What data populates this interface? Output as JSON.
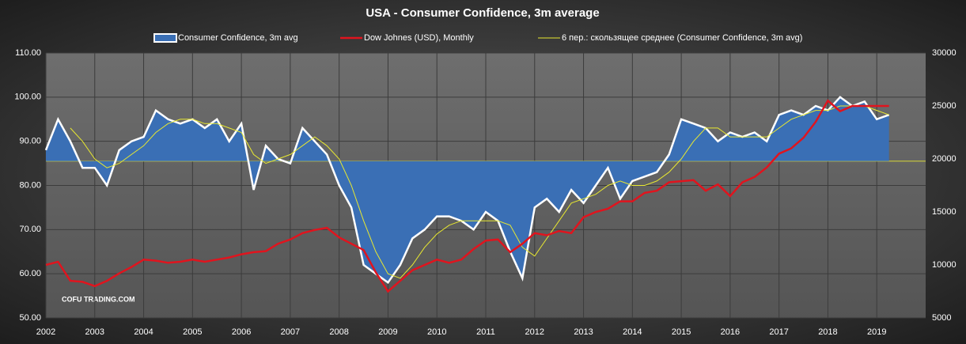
{
  "chart_data": {
    "type": "area-line",
    "title": "USA - Consumer Confidence, 3m average",
    "watermark": "COFU TRADING.COM",
    "x": [
      2002,
      2002.25,
      2002.5,
      2002.75,
      2003,
      2003.25,
      2003.5,
      2003.75,
      2004,
      2004.25,
      2004.5,
      2004.75,
      2005,
      2005.25,
      2005.5,
      2005.75,
      2006,
      2006.25,
      2006.5,
      2006.75,
      2007,
      2007.25,
      2007.5,
      2007.75,
      2008,
      2008.25,
      2008.5,
      2008.75,
      2009,
      2009.25,
      2009.5,
      2009.75,
      2010,
      2010.25,
      2010.5,
      2010.75,
      2011,
      2011.25,
      2011.5,
      2011.75,
      2012,
      2012.25,
      2012.5,
      2012.75,
      2013,
      2013.25,
      2013.5,
      2013.75,
      2014,
      2014.25,
      2014.5,
      2014.75,
      2015,
      2015.25,
      2015.5,
      2015.75,
      2016,
      2016.25,
      2016.5,
      2016.75,
      2017,
      2017.25,
      2017.5,
      2017.75,
      2018,
      2018.25,
      2018.5,
      2018.75,
      2019,
      2019.25
    ],
    "baseline": 85.5,
    "series": [
      {
        "name": "Consumer Confidence, 3m avg",
        "kind": "area",
        "color": "#3a6fb5",
        "line_color": "#ffffff",
        "values": [
          88,
          95,
          90,
          84,
          84,
          80,
          88,
          90,
          91,
          97,
          95,
          94,
          95,
          93,
          95,
          90,
          94,
          79,
          89,
          86,
          85,
          93,
          90,
          87,
          80,
          75,
          62,
          60,
          58,
          62,
          68,
          70,
          73,
          73,
          72,
          70,
          74,
          72,
          65,
          59,
          75,
          77,
          74,
          79,
          76,
          80,
          84,
          77,
          81,
          82,
          83,
          87,
          95,
          94,
          93,
          90,
          92,
          91,
          92,
          90,
          96,
          97,
          96,
          98,
          97,
          100,
          98,
          99,
          95,
          96
        ]
      },
      {
        "name": "Dow Johnes (USD), Monthly",
        "kind": "line",
        "axis": "y2",
        "color": "#e0141e",
        "values": [
          10000,
          10300,
          8500,
          8400,
          8000,
          8500,
          9200,
          9800,
          10500,
          10400,
          10200,
          10300,
          10500,
          10300,
          10500,
          10700,
          11000,
          11200,
          11300,
          12000,
          12400,
          13000,
          13300,
          13500,
          12600,
          12000,
          11400,
          9300,
          7500,
          8500,
          9500,
          10000,
          10500,
          10200,
          10500,
          11500,
          12300,
          12400,
          11200,
          12000,
          13000,
          12800,
          13200,
          13000,
          14500,
          15000,
          15300,
          16000,
          16000,
          16800,
          17000,
          17800,
          17900,
          18000,
          17000,
          17600,
          16500,
          17800,
          18300,
          19200,
          20500,
          21000,
          22000,
          23500,
          25500,
          24500,
          25000,
          25000,
          25000,
          25000
        ]
      },
      {
        "name": "6 пер.: скользящее среднее (Consumer Confidence, 3m avg)",
        "kind": "line",
        "color": "#e8e830",
        "values": [
          null,
          null,
          93,
          90,
          86,
          84,
          85,
          87,
          89,
          92,
          94,
          95,
          95,
          94,
          94,
          93,
          92,
          87,
          85,
          86,
          87,
          89,
          91,
          89,
          86,
          80,
          72,
          65,
          60,
          59,
          62,
          66,
          69,
          71,
          72,
          72,
          72,
          72,
          71,
          66,
          64,
          68,
          72,
          76,
          77,
          78,
          80,
          81,
          80,
          80,
          81,
          83,
          86,
          90,
          93,
          93,
          91,
          91,
          91,
          91,
          93,
          95,
          96,
          97,
          97,
          98,
          98,
          98,
          97,
          96
        ]
      }
    ],
    "xlim": [
      2002,
      2020
    ],
    "xticks": [
      2002,
      2003,
      2004,
      2005,
      2006,
      2007,
      2008,
      2009,
      2010,
      2011,
      2012,
      2013,
      2014,
      2015,
      2016,
      2017,
      2018,
      2019
    ],
    "ylim": [
      50,
      110
    ],
    "yticks": [
      {
        "value": 50,
        "label": "50.00"
      },
      {
        "value": 60,
        "label": "60.00"
      },
      {
        "value": 70,
        "label": "70.00"
      },
      {
        "value": 80,
        "label": "80.00"
      },
      {
        "value": 90,
        "label": "90.00"
      },
      {
        "value": 100,
        "label": "100.00"
      },
      {
        "value": 110,
        "label": "110.00"
      }
    ],
    "y2lim": [
      5000,
      30000
    ],
    "y2ticks": [
      5000,
      10000,
      15000,
      20000,
      25000,
      30000
    ],
    "grid": true
  }
}
